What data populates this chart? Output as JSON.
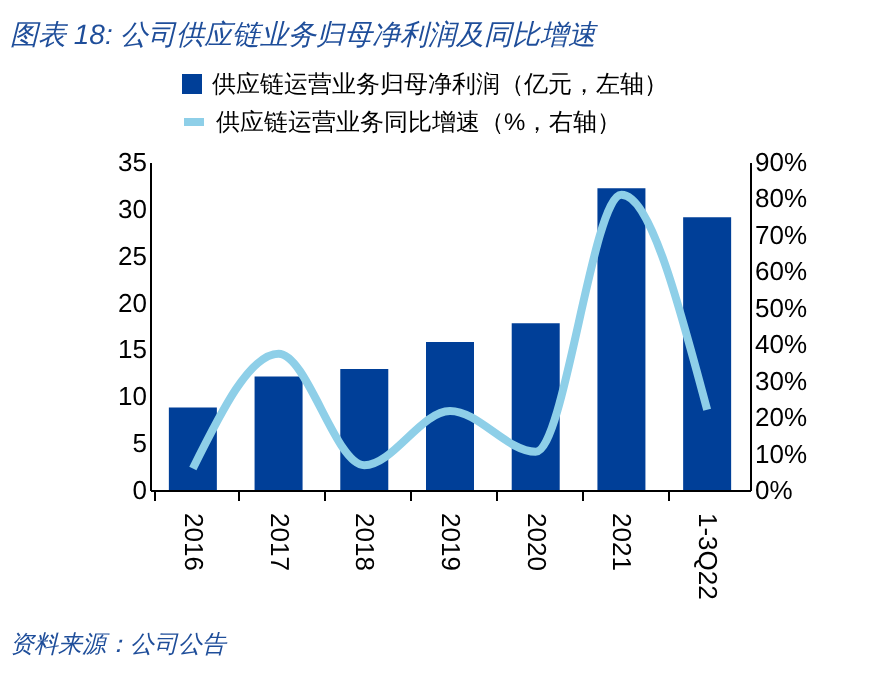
{
  "chart_data": {
    "type": "bar",
    "title": "图表 18: 公司供应链业务归母净利润及同比增速",
    "categories": [
      "2016",
      "2017",
      "2018",
      "2019",
      "2020",
      "2021",
      "1-3Q22"
    ],
    "series": [
      {
        "name": "供应链运营业务归母净利润（亿元，左轴）",
        "color": "#003f98",
        "values": [
          8.8,
          12.1,
          12.9,
          15.8,
          17.8,
          32.2,
          29.1
        ]
      },
      {
        "name": "供应链运营业务同比增速（%，右轴）",
        "type": "line",
        "axis": "y2",
        "color": "#8ecfe8",
        "values": [
          5.9,
          37.4,
          6.8,
          21.7,
          10.5,
          81,
          22
        ]
      }
    ],
    "ylim": [
      0,
      35
    ],
    "yticks": [
      0,
      5,
      10,
      15,
      20,
      25,
      30,
      35
    ],
    "y2lim": [
      0,
      90
    ],
    "y2ticks": [
      {
        "value": 0,
        "label": "0%"
      },
      {
        "value": 10,
        "label": "10%"
      },
      {
        "value": 20,
        "label": "20%"
      },
      {
        "value": 30,
        "label": "30%"
      },
      {
        "value": 40,
        "label": "40%"
      },
      {
        "value": 50,
        "label": "50%"
      },
      {
        "value": 60,
        "label": "60%"
      },
      {
        "value": 70,
        "label": "70%"
      },
      {
        "value": 80,
        "label": "80%"
      },
      {
        "value": 90,
        "label": "90%"
      }
    ],
    "legend": "top",
    "grid": false,
    "annotations": [
      "资料来源：公司公告"
    ]
  }
}
